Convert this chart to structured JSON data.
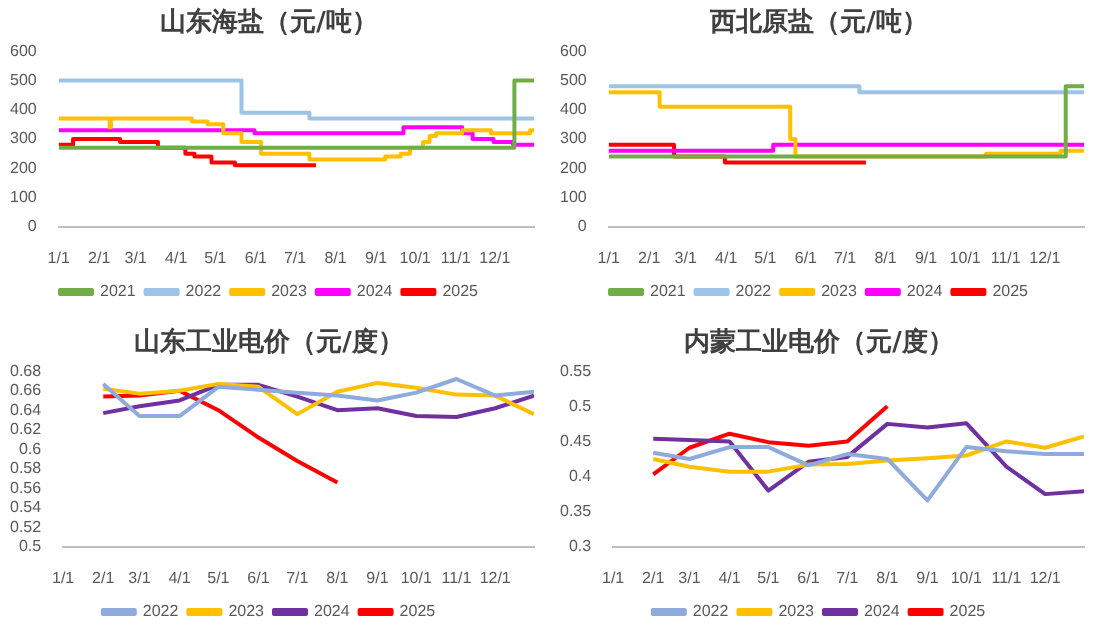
{
  "chart_data": [
    {
      "type": "step",
      "title": "山东海盐（元/吨）",
      "xlim": [
        "--01-01",
        "--12-31"
      ],
      "xticks": [
        {
          "value": "--01-01",
          "label": "1/1"
        },
        {
          "value": "--02-01",
          "label": "2/1"
        },
        {
          "value": "--03-01",
          "label": "3/1"
        },
        {
          "value": "--04-01",
          "label": "4/1"
        },
        {
          "value": "--05-01",
          "label": "5/1"
        },
        {
          "value": "--06-01",
          "label": "6/1"
        },
        {
          "value": "--07-01",
          "label": "7/1"
        },
        {
          "value": "--08-01",
          "label": "8/1"
        },
        {
          "value": "--09-01",
          "label": "9/1"
        },
        {
          "value": "--10-01",
          "label": "10/1"
        },
        {
          "value": "--11-01",
          "label": "11/1"
        },
        {
          "value": "--12-01",
          "label": "12/1"
        }
      ],
      "ylim": [
        0,
        600
      ],
      "yticks": [
        0,
        100,
        200,
        300,
        400,
        500,
        600
      ],
      "legend": "bottom",
      "series": [
        {
          "name": "2021",
          "color": "#70ad47",
          "x": [
            "--01-01",
            "--12-16",
            "--12-31"
          ],
          "values": [
            270,
            500,
            500
          ]
        },
        {
          "name": "2022",
          "color": "#9dc3e6",
          "x": [
            "--01-01",
            "--05-21",
            "--07-12",
            "--12-31"
          ],
          "values": [
            500,
            390,
            370,
            370
          ]
        },
        {
          "name": "2023",
          "color": "#ffc000",
          "x": [
            "--01-01",
            "--02-09",
            "--02-10",
            "--04-13",
            "--04-25",
            "--05-07",
            "--05-21",
            "--06-05",
            "--07-12",
            "--09-08",
            "--09-20",
            "--09-27",
            "--10-07",
            "--10-12",
            "--10-17",
            "--11-06",
            "--11-28",
            "--12-28",
            "--12-31"
          ],
          "values": [
            370,
            340,
            370,
            360,
            350,
            320,
            290,
            250,
            230,
            240,
            250,
            270,
            290,
            310,
            320,
            330,
            320,
            330,
            330
          ]
        },
        {
          "name": "2024",
          "color": "#ff00ff",
          "x": [
            "--01-01",
            "--05-31",
            "--09-08",
            "--09-22",
            "--11-06",
            "--11-14",
            "--11-30",
            "--12-15",
            "--12-31"
          ],
          "values": [
            330,
            320,
            320,
            340,
            320,
            300,
            290,
            280,
            280
          ]
        },
        {
          "name": "2025",
          "color": "#ff0000",
          "x": [
            "--01-01",
            "--01-12",
            "--01-22",
            "--02-17",
            "--03-18",
            "--04-08",
            "--04-15",
            "--04-28",
            "--05-16",
            "--07-17"
          ],
          "values": [
            280,
            300,
            300,
            290,
            270,
            250,
            240,
            220,
            210,
            210
          ]
        }
      ]
    },
    {
      "type": "step",
      "title": "西北原盐（元/吨）",
      "xlim": [
        "--01-01",
        "--12-31"
      ],
      "xticks": [
        {
          "value": "--01-01",
          "label": "1/1"
        },
        {
          "value": "--02-01",
          "label": "2/1"
        },
        {
          "value": "--03-01",
          "label": "3/1"
        },
        {
          "value": "--04-01",
          "label": "4/1"
        },
        {
          "value": "--05-01",
          "label": "5/1"
        },
        {
          "value": "--06-01",
          "label": "6/1"
        },
        {
          "value": "--07-01",
          "label": "7/1"
        },
        {
          "value": "--08-01",
          "label": "8/1"
        },
        {
          "value": "--09-01",
          "label": "9/1"
        },
        {
          "value": "--10-01",
          "label": "10/1"
        },
        {
          "value": "--11-01",
          "label": "11/1"
        },
        {
          "value": "--12-01",
          "label": "12/1"
        }
      ],
      "ylim": [
        0,
        600
      ],
      "yticks": [
        0,
        100,
        200,
        300,
        400,
        500,
        600
      ],
      "legend": "bottom",
      "series": [
        {
          "name": "2021",
          "color": "#70ad47",
          "x": [
            "--01-01",
            "--12-17",
            "--12-31"
          ],
          "values": [
            240,
            480,
            480
          ]
        },
        {
          "name": "2022",
          "color": "#9dc3e6",
          "x": [
            "--01-01",
            "--07-12",
            "--12-31"
          ],
          "values": [
            480,
            460,
            460
          ]
        },
        {
          "name": "2023",
          "color": "#ffc000",
          "x": [
            "--01-01",
            "--02-09",
            "--05-20",
            "--05-21",
            "--05-24",
            "--10-17",
            "--12-13",
            "--12-31"
          ],
          "values": [
            460,
            410,
            300,
            300,
            240,
            250,
            260,
            260
          ]
        },
        {
          "name": "2024",
          "color": "#ff00ff",
          "x": [
            "--01-01",
            "--05-07",
            "--12-31"
          ],
          "values": [
            260,
            280,
            280
          ]
        },
        {
          "name": "2025",
          "color": "#ff0000",
          "x": [
            "--01-01",
            "--02-20",
            "--03-31",
            "--07-17"
          ],
          "values": [
            280,
            240,
            220,
            220
          ]
        }
      ]
    },
    {
      "type": "line",
      "title": "山东工业电价（元/度）",
      "x": [
        "--02-01",
        "--03-01",
        "--04-01",
        "--05-01",
        "--06-01",
        "--07-01",
        "--08-01",
        "--09-01",
        "--10-01",
        "--11-01",
        "--12-01",
        "--12-31"
      ],
      "xlim": [
        "--01-01",
        "--12-31"
      ],
      "xticks": [
        {
          "value": "--01-01",
          "label": "1/1"
        },
        {
          "value": "--02-01",
          "label": "2/1"
        },
        {
          "value": "--03-01",
          "label": "3/1"
        },
        {
          "value": "--04-01",
          "label": "4/1"
        },
        {
          "value": "--05-01",
          "label": "5/1"
        },
        {
          "value": "--06-01",
          "label": "6/1"
        },
        {
          "value": "--07-01",
          "label": "7/1"
        },
        {
          "value": "--08-01",
          "label": "8/1"
        },
        {
          "value": "--09-01",
          "label": "9/1"
        },
        {
          "value": "--10-01",
          "label": "10/1"
        },
        {
          "value": "--11-01",
          "label": "11/1"
        },
        {
          "value": "--12-01",
          "label": "12/1"
        }
      ],
      "ylim": [
        0.5,
        0.68
      ],
      "yticks": [
        0.5,
        0.52,
        0.54,
        0.56,
        0.58,
        0.6,
        0.62,
        0.64,
        0.66,
        0.68
      ],
      "legend": "bottom",
      "series": [
        {
          "name": "2022",
          "color": "#8faadc",
          "values": [
            0.667,
            0.634,
            0.634,
            0.664,
            0.661,
            0.658,
            0.655,
            0.65,
            0.658,
            0.672,
            0.655,
            0.659
          ]
        },
        {
          "name": "2023",
          "color": "#ffc000",
          "values": [
            0.662,
            0.657,
            0.66,
            0.667,
            0.664,
            0.636,
            0.659,
            0.668,
            0.663,
            0.656,
            0.655,
            0.636
          ]
        },
        {
          "name": "2024",
          "color": "#7030a0",
          "values": [
            0.637,
            0.644,
            0.65,
            0.666,
            0.666,
            0.654,
            0.64,
            0.642,
            0.634,
            0.633,
            0.642,
            0.655
          ]
        },
        {
          "name": "2025",
          "color": "#ff0000",
          "values": [
            0.654,
            0.655,
            0.66,
            0.64,
            0.612,
            0.588,
            0.566,
            null,
            null,
            null,
            null,
            null
          ]
        }
      ]
    },
    {
      "type": "line",
      "title": "内蒙工业电价（元/度）",
      "x": [
        "--02-01",
        "--03-01",
        "--04-01",
        "--05-01",
        "--06-01",
        "--07-01",
        "--08-01",
        "--09-01",
        "--10-01",
        "--11-01",
        "--12-01",
        "--12-31"
      ],
      "xlim": [
        "--01-01",
        "--12-31"
      ],
      "xticks": [
        {
          "value": "--01-01",
          "label": "1/1"
        },
        {
          "value": "--02-01",
          "label": "2/1"
        },
        {
          "value": "--03-01",
          "label": "3/1"
        },
        {
          "value": "--04-01",
          "label": "4/1"
        },
        {
          "value": "--05-01",
          "label": "5/1"
        },
        {
          "value": "--06-01",
          "label": "6/1"
        },
        {
          "value": "--07-01",
          "label": "7/1"
        },
        {
          "value": "--08-01",
          "label": "8/1"
        },
        {
          "value": "--09-01",
          "label": "9/1"
        },
        {
          "value": "--10-01",
          "label": "10/1"
        },
        {
          "value": "--11-01",
          "label": "11/1"
        },
        {
          "value": "--12-01",
          "label": "12/1"
        }
      ],
      "ylim": [
        0.3,
        0.55
      ],
      "yticks": [
        0.3,
        0.35,
        0.4,
        0.45,
        0.5,
        0.55
      ],
      "legend": "bottom",
      "series": [
        {
          "name": "2022",
          "color": "#8faadc",
          "values": [
            0.434,
            0.425,
            0.442,
            0.442,
            0.416,
            0.432,
            0.425,
            0.366,
            0.442,
            0.436,
            0.432,
            0.432
          ]
        },
        {
          "name": "2023",
          "color": "#ffc000",
          "values": [
            0.425,
            0.414,
            0.407,
            0.407,
            0.417,
            0.418,
            0.423,
            0.426,
            0.43,
            0.45,
            0.441,
            0.457
          ]
        },
        {
          "name": "2024",
          "color": "#7030a0",
          "values": [
            0.454,
            0.452,
            0.45,
            0.38,
            0.421,
            0.428,
            0.475,
            0.47,
            0.476,
            0.414,
            0.375,
            0.379
          ]
        },
        {
          "name": "2025",
          "color": "#ff0000",
          "values": [
            0.403,
            0.441,
            0.461,
            0.449,
            0.444,
            0.45,
            0.5,
            null,
            null,
            null,
            null,
            null
          ]
        }
      ]
    }
  ]
}
